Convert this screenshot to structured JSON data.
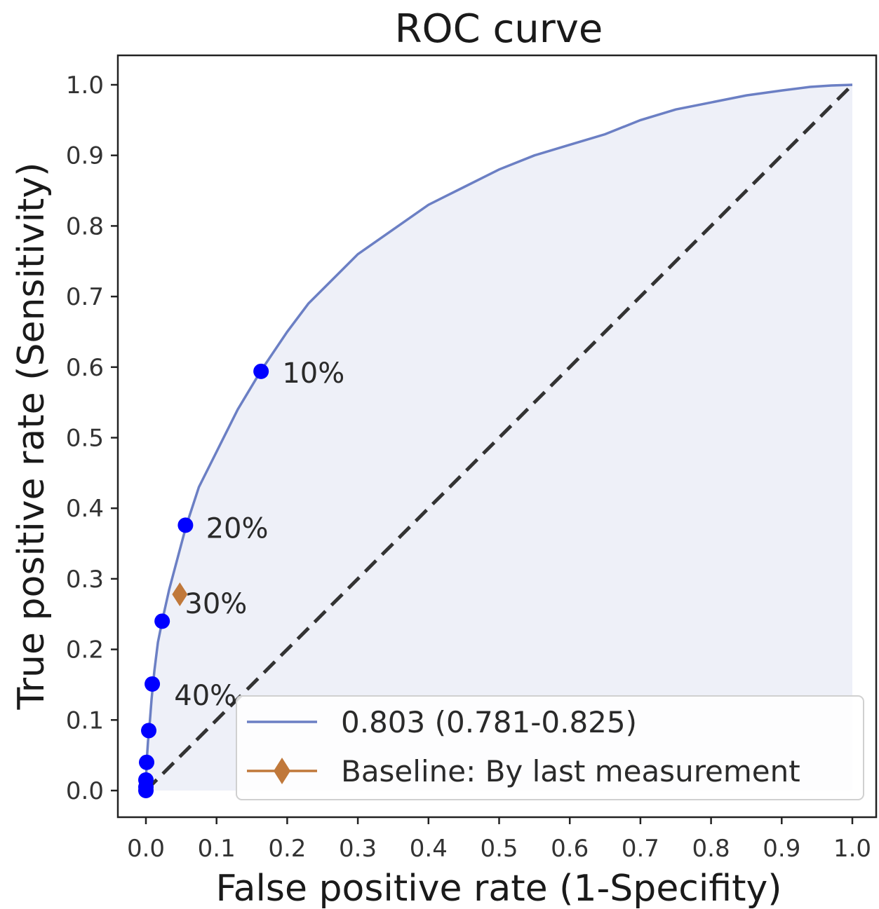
{
  "chart_data": {
    "type": "line",
    "title": "ROC curve",
    "xlabel": "False positive rate (1-Specifity)",
    "ylabel": "True positive rate (Sensitivity)",
    "xlim": [
      -0.04,
      1.03
    ],
    "ylim": [
      -0.04,
      1.04
    ],
    "xticks": [
      "0.0",
      "0.1",
      "0.2",
      "0.3",
      "0.4",
      "0.5",
      "0.6",
      "0.7",
      "0.8",
      "0.9",
      "1.0"
    ],
    "yticks": [
      "0.0",
      "0.1",
      "0.2",
      "0.3",
      "0.4",
      "0.5",
      "0.6",
      "0.7",
      "0.8",
      "0.9",
      "1.0"
    ],
    "grid": false,
    "legend_position": "bottom-right",
    "series": [
      {
        "name": "0.803 (0.781-0.825)",
        "color": "#6b7fc4",
        "fill": "#eef0f8",
        "x": [
          0.0,
          0.0,
          0.001,
          0.003,
          0.005,
          0.008,
          0.012,
          0.017,
          0.024,
          0.033,
          0.045,
          0.057,
          0.075,
          0.1,
          0.13,
          0.163,
          0.2,
          0.23,
          0.26,
          0.3,
          0.35,
          0.4,
          0.45,
          0.5,
          0.55,
          0.6,
          0.65,
          0.7,
          0.75,
          0.8,
          0.85,
          0.9,
          0.94,
          0.97,
          1.0
        ],
        "y": [
          0.0,
          0.01,
          0.04,
          0.07,
          0.09,
          0.13,
          0.17,
          0.21,
          0.245,
          0.285,
          0.33,
          0.375,
          0.43,
          0.48,
          0.54,
          0.595,
          0.65,
          0.69,
          0.72,
          0.76,
          0.795,
          0.83,
          0.855,
          0.88,
          0.9,
          0.915,
          0.93,
          0.95,
          0.965,
          0.975,
          0.985,
          0.992,
          0.997,
          0.999,
          1.0
        ]
      },
      {
        "name": "Baseline: By last measurement",
        "color": "#c0783a",
        "marker": "diamond",
        "x": [
          0.048
        ],
        "y": [
          0.278
        ]
      }
    ],
    "diagonal": {
      "x": [
        0,
        1
      ],
      "y": [
        0,
        1
      ],
      "color": "#333333",
      "style": "dashed"
    },
    "threshold_points": {
      "color": "#0000ff",
      "x": [
        0.163,
        0.056,
        0.023,
        0.009,
        0.004,
        0.001,
        0.0,
        0.0,
        0.0
      ],
      "y": [
        0.594,
        0.376,
        0.24,
        0.151,
        0.085,
        0.04,
        0.015,
        0.005,
        0.0
      ]
    },
    "annotations": [
      {
        "text": "10%",
        "x": 0.193,
        "y": 0.592
      },
      {
        "text": "20%",
        "x": 0.085,
        "y": 0.372
      },
      {
        "text": "30%",
        "x": 0.055,
        "y": 0.265
      },
      {
        "text": "40%",
        "x": 0.04,
        "y": 0.135
      }
    ]
  }
}
